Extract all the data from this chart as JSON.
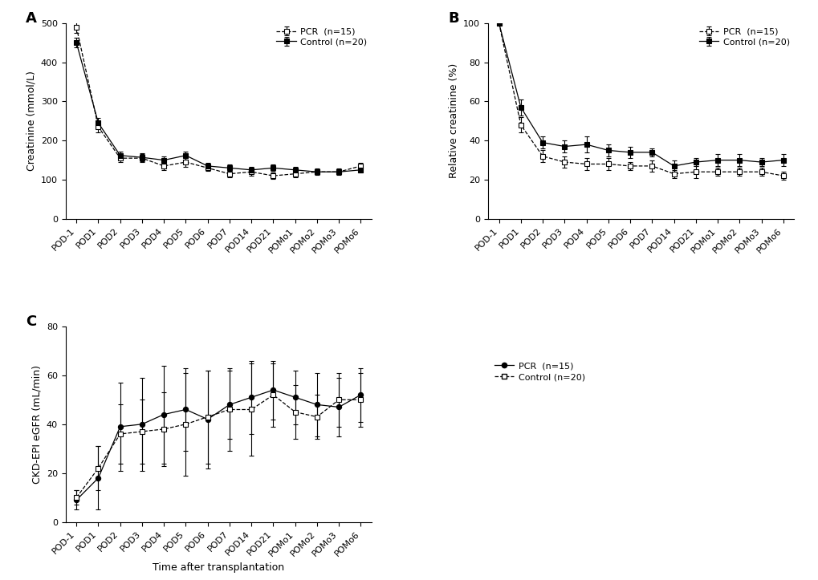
{
  "x_labels": [
    "POD-1",
    "POD1",
    "POD2",
    "POD3",
    "POD4",
    "POD5",
    "POD6",
    "POD7",
    "POD14",
    "POD21",
    "POMo1",
    "POMo2",
    "POMo3",
    "POMo6"
  ],
  "panel_A": {
    "ylabel": "Creatinine (mmol/L)",
    "ylim": [
      0,
      500
    ],
    "yticks": [
      0,
      100,
      200,
      300,
      400,
      500
    ],
    "pcr": [
      490,
      235,
      155,
      155,
      135,
      145,
      130,
      115,
      120,
      110,
      115,
      120,
      120,
      135
    ],
    "control": [
      450,
      245,
      162,
      157,
      150,
      162,
      135,
      130,
      125,
      130,
      125,
      120,
      120,
      125
    ],
    "pcr_err": [
      15,
      15,
      10,
      10,
      10,
      12,
      8,
      8,
      10,
      8,
      8,
      8,
      8,
      8
    ],
    "control_err": [
      12,
      12,
      10,
      10,
      10,
      10,
      8,
      8,
      8,
      8,
      8,
      6,
      6,
      6
    ]
  },
  "panel_B": {
    "ylabel": "Relative creatinine (%)",
    "ylim": [
      0,
      100
    ],
    "yticks": [
      0,
      20,
      40,
      60,
      80,
      100
    ],
    "pcr": [
      100,
      48,
      32,
      29,
      28,
      28,
      27,
      27,
      23,
      24,
      24,
      24,
      24,
      22
    ],
    "control": [
      100,
      57,
      39,
      37,
      38,
      35,
      34,
      34,
      27,
      29,
      30,
      30,
      29,
      30
    ],
    "pcr_err": [
      0,
      4,
      3,
      3,
      3,
      3,
      2,
      3,
      2,
      3,
      2,
      2,
      2,
      2
    ],
    "control_err": [
      0,
      4,
      3,
      3,
      4,
      3,
      3,
      2,
      3,
      2,
      3,
      3,
      2,
      3
    ]
  },
  "panel_C": {
    "ylabel": "CKD-EPI eGFR (mL/min)",
    "xlabel": "Time after transplantation",
    "ylim": [
      0,
      80
    ],
    "yticks": [
      0,
      20,
      40,
      60,
      80
    ],
    "pcr": [
      9,
      18,
      39,
      40,
      44,
      46,
      42,
      48,
      51,
      54,
      51,
      48,
      47,
      52
    ],
    "control": [
      10,
      22,
      36,
      37,
      38,
      40,
      43,
      46,
      46,
      52,
      45,
      43,
      50,
      50
    ],
    "pcr_err": [
      4,
      13,
      18,
      19,
      20,
      17,
      20,
      14,
      15,
      12,
      11,
      13,
      12,
      11
    ],
    "control_err": [
      3,
      9,
      12,
      13,
      15,
      21,
      19,
      17,
      19,
      13,
      11,
      9,
      11,
      11
    ]
  },
  "legend_pcr_AB": "PCR  (n=15)",
  "legend_control_AB": "Control (n=20)",
  "legend_pcr_C": "PCR  (n=15)",
  "legend_control_C": "Control (n=20)",
  "background_color": "#ffffff",
  "fontsize_label": 9,
  "fontsize_tick": 8,
  "fontsize_panel": 13,
  "fontsize_legend": 8
}
